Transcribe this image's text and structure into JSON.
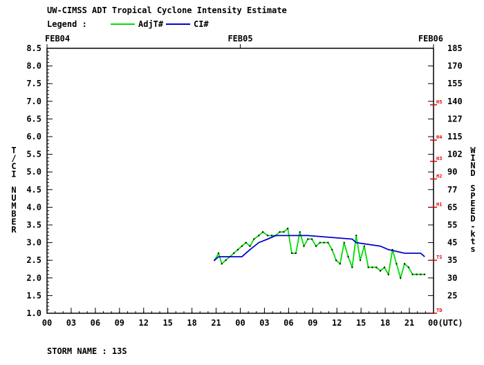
{
  "title": "UW-CIMSS ADT Tropical Cyclone Intensity Estimate",
  "legend_label": "Legend :",
  "storm_label": "STORM NAME : 13S",
  "colors": {
    "adjt": "#00dd00",
    "ci": "#0000cc",
    "axis": "#000000",
    "marker": "#dd0000",
    "text": "#000000"
  },
  "chart_data": {
    "type": "line",
    "dates": [
      "FEB04",
      "FEB05",
      "FEB06"
    ],
    "x_ticks": [
      "00",
      "03",
      "06",
      "09",
      "12",
      "15",
      "18",
      "21",
      "00",
      "03",
      "06",
      "09",
      "12",
      "15",
      "18",
      "21",
      "00(UTC)"
    ],
    "x_range_hours": [
      0,
      48
    ],
    "y_left_ticks": [
      "1.0",
      "1.5",
      "2.0",
      "2.5",
      "3.0",
      "3.5",
      "4.0",
      "4.5",
      "5.0",
      "5.5",
      "6.0",
      "6.5",
      "7.0",
      "7.5",
      "8.0",
      "8.5"
    ],
    "y_right_ticks": [
      "25",
      "30",
      "35",
      "45",
      "55",
      "65",
      "77",
      "90",
      "102",
      "115",
      "127",
      "140",
      "155",
      "170",
      "185"
    ],
    "y_range": [
      1.0,
      8.5
    ],
    "ylabel_left": "T/CI NUMBER",
    "ylabel_right": "WIND SPEED-kts",
    "category_markers": [
      {
        "label": "TD",
        "value": 1.0
      },
      {
        "label": "TS",
        "value": 2.5
      },
      {
        "label": "H1",
        "value": 4.0
      },
      {
        "label": "H2",
        "value": 4.8
      },
      {
        "label": "H3",
        "value": 5.3
      },
      {
        "label": "H4",
        "value": 5.9
      },
      {
        "label": "H5",
        "value": 6.9
      }
    ],
    "series": [
      {
        "name": "AdjT#",
        "x": [
          20.8,
          21.3,
          21.7,
          22.2,
          22.7,
          23.2,
          23.7,
          24.2,
          24.7,
          25.2,
          25.7,
          26.3,
          26.8,
          27.4,
          27.9,
          28.4,
          28.9,
          29.4,
          29.9,
          30.4,
          30.9,
          31.4,
          31.9,
          32.4,
          32.9,
          33.4,
          33.9,
          34.4,
          34.9,
          35.4,
          35.9,
          36.4,
          36.9,
          37.4,
          37.9,
          38.4,
          38.9,
          39.4,
          39.9,
          40.4,
          40.9,
          41.4,
          41.9,
          42.4,
          42.9,
          43.4,
          43.9,
          44.4,
          44.9,
          45.4,
          45.9,
          46.4,
          46.9
        ],
        "y": [
          2.5,
          2.7,
          2.4,
          2.5,
          2.6,
          2.7,
          2.8,
          2.9,
          3.0,
          2.9,
          3.1,
          3.2,
          3.3,
          3.2,
          3.2,
          3.2,
          3.3,
          3.3,
          3.4,
          2.7,
          2.7,
          3.3,
          2.9,
          3.1,
          3.1,
          2.9,
          3.0,
          3.0,
          3.0,
          2.8,
          2.5,
          2.4,
          3.0,
          2.6,
          2.3,
          3.2,
          2.5,
          2.9,
          2.3,
          2.3,
          2.3,
          2.2,
          2.3,
          2.1,
          2.8,
          2.4,
          2.0,
          2.4,
          2.3,
          2.1,
          2.1,
          2.1,
          2.1
        ]
      },
      {
        "name": "CI#",
        "x": [
          20.8,
          21.3,
          24.2,
          25.2,
          26.3,
          27.4,
          28.4,
          29.4,
          32.4,
          37.9,
          38.4,
          41.4,
          42.4,
          44.4,
          46.4,
          46.9
        ],
        "y": [
          2.5,
          2.6,
          2.6,
          2.8,
          3.0,
          3.1,
          3.2,
          3.2,
          3.2,
          3.1,
          3.0,
          2.9,
          2.8,
          2.7,
          2.7,
          2.6
        ]
      }
    ]
  }
}
